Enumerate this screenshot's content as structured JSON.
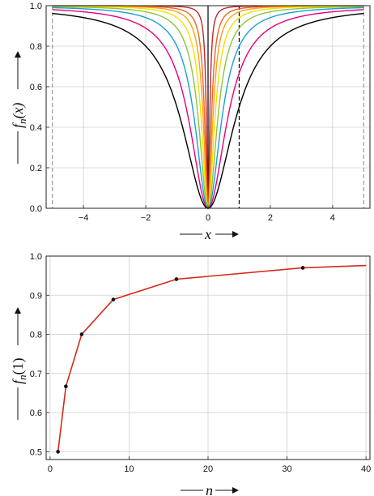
{
  "chart_data": [
    {
      "type": "line",
      "function": "f_n(x) = x^2 / (x^2 + 1/n)",
      "x_range": [
        -5,
        5
      ],
      "xlim": [
        -5.2,
        5.2
      ],
      "ylim": [
        0,
        1
      ],
      "x_ticks": [
        -4,
        -2,
        0,
        2,
        4
      ],
      "y_ticks": [
        0.0,
        0.2,
        0.4,
        0.6,
        0.8,
        1.0
      ],
      "x_tick_labels": [
        "−4",
        "−2",
        "0",
        "2",
        "4"
      ],
      "y_tick_labels": [
        "0.0",
        "0.2",
        "0.4",
        "0.6",
        "0.8",
        "1.0"
      ],
      "xlabel_text": "x",
      "ylabel_base": "f",
      "ylabel_sub": "n",
      "ylabel_arg": "(x)",
      "grid": true,
      "series": [
        {
          "n": 1,
          "color": "#000000"
        },
        {
          "n": 2,
          "color": "#e6007e"
        },
        {
          "n": 4,
          "color": "#1a9fd8"
        },
        {
          "n": 8,
          "color": "#8cc63f"
        },
        {
          "n": 16,
          "color": "#f7e000"
        },
        {
          "n": 32,
          "color": "#f9a21a"
        },
        {
          "n": 64,
          "color": "#f26522"
        },
        {
          "n": 256,
          "color": "#c1272d"
        }
      ],
      "vertical_lines": [
        {
          "x": -5,
          "style": "dashed",
          "color": "#999999"
        },
        {
          "x": 5,
          "style": "dashed",
          "color": "#999999"
        },
        {
          "x": 1,
          "style": "dashed",
          "color": "#000000"
        },
        {
          "x": 0,
          "style": "solid",
          "color": "#000000"
        }
      ]
    },
    {
      "type": "line",
      "x": [
        1,
        2,
        4,
        8,
        16,
        32,
        40
      ],
      "y": [
        0.5,
        0.667,
        0.8,
        0.889,
        0.941,
        0.97,
        0.976
      ],
      "marked_points": [
        1,
        2,
        4,
        8,
        16,
        32
      ],
      "line_color": "#d42a1a",
      "xlim": [
        -0.5,
        40.5
      ],
      "ylim": [
        0.48,
        1.0
      ],
      "x_ticks": [
        0,
        10,
        20,
        30,
        40
      ],
      "y_ticks": [
        0.5,
        0.6,
        0.7,
        0.8,
        0.9,
        1.0
      ],
      "x_tick_labels": [
        "0",
        "10",
        "20",
        "30",
        "40"
      ],
      "y_tick_labels": [
        "0.5",
        "0.6",
        "0.7",
        "0.8",
        "0.9",
        "1.0"
      ],
      "xlabel_text": "n",
      "ylabel_base": "f",
      "ylabel_sub": "n",
      "ylabel_arg": "(1)",
      "grid": true
    }
  ]
}
